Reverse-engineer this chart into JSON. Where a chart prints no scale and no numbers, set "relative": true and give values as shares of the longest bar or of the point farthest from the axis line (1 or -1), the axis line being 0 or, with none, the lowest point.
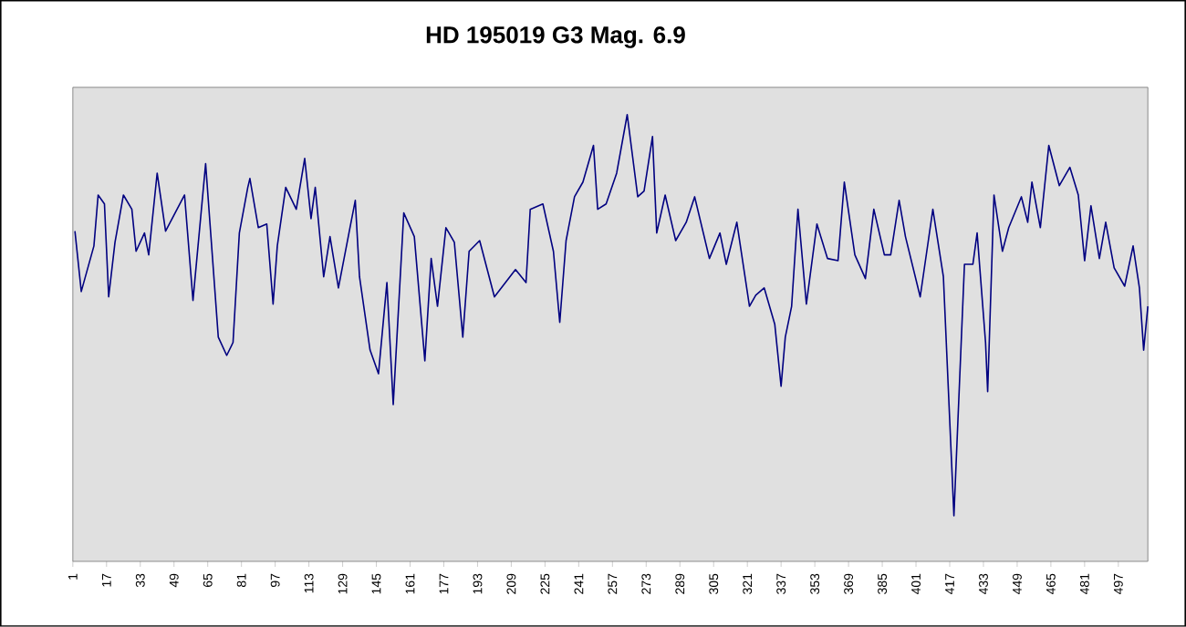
{
  "chart_data": {
    "type": "line",
    "title": "HD 195019 G3  Mag. 6.9",
    "relative": true,
    "tick_labels": "x",
    "grid": false,
    "marker": "none",
    "line_style": "solid",
    "xlim": [
      1,
      511
    ],
    "xticks": [
      1,
      17,
      33,
      49,
      65,
      81,
      97,
      113,
      129,
      145,
      161,
      177,
      193,
      209,
      225,
      241,
      257,
      273,
      289,
      305,
      321,
      337,
      353,
      369,
      385,
      401,
      417,
      433,
      449,
      465,
      481,
      497
    ],
    "series": [
      {
        "color": "#000080",
        "x": [
          2,
          5,
          11,
          13,
          16,
          18,
          21,
          25,
          29,
          31,
          35,
          37,
          41,
          45,
          54,
          58,
          64,
          70,
          74,
          77,
          80,
          84,
          85,
          89,
          93,
          96,
          98,
          102,
          107,
          111,
          114,
          116,
          120,
          123,
          127,
          132,
          135,
          137,
          142,
          146,
          150,
          153,
          158,
          163,
          168,
          171,
          174,
          178,
          182,
          186,
          189,
          194,
          201,
          211,
          216,
          218,
          224,
          229,
          232,
          235,
          239,
          243,
          248,
          250,
          254,
          259,
          264,
          269,
          272,
          276,
          278,
          282,
          287,
          292,
          296,
          303,
          308,
          311,
          316,
          322,
          325,
          329,
          334,
          337,
          339,
          342,
          345,
          349,
          354,
          359,
          364,
          367,
          372,
          377,
          381,
          386,
          389,
          393,
          396,
          403,
          409,
          414,
          419,
          424,
          428,
          430,
          434,
          435,
          438,
          442,
          445,
          451,
          454,
          456,
          460,
          464,
          469,
          474,
          478,
          481,
          484,
          488,
          491,
          495,
          500,
          504,
          507,
          509,
          511
        ],
        "values": [
          0.739,
          0.604,
          0.706,
          0.82,
          0.8,
          0.592,
          0.714,
          0.82,
          0.788,
          0.694,
          0.735,
          0.686,
          0.869,
          0.739,
          0.82,
          0.584,
          0.89,
          0.502,
          0.461,
          0.49,
          0.735,
          0.837,
          0.857,
          0.747,
          0.755,
          0.576,
          0.706,
          0.837,
          0.788,
          0.902,
          0.767,
          0.837,
          0.637,
          0.727,
          0.612,
          0.735,
          0.808,
          0.637,
          0.473,
          0.42,
          0.624,
          0.351,
          0.78,
          0.727,
          0.449,
          0.678,
          0.571,
          0.747,
          0.714,
          0.502,
          0.694,
          0.718,
          0.592,
          0.653,
          0.624,
          0.788,
          0.8,
          0.694,
          0.535,
          0.718,
          0.816,
          0.849,
          0.931,
          0.788,
          0.8,
          0.869,
          1.0,
          0.816,
          0.829,
          0.951,
          0.735,
          0.82,
          0.718,
          0.759,
          0.816,
          0.678,
          0.735,
          0.665,
          0.759,
          0.571,
          0.596,
          0.612,
          0.531,
          0.392,
          0.502,
          0.571,
          0.788,
          0.576,
          0.755,
          0.678,
          0.673,
          0.849,
          0.686,
          0.633,
          0.788,
          0.686,
          0.686,
          0.808,
          0.727,
          0.592,
          0.788,
          0.637,
          0.102,
          0.665,
          0.665,
          0.735,
          0.49,
          0.38,
          0.82,
          0.694,
          0.747,
          0.816,
          0.759,
          0.849,
          0.747,
          0.931,
          0.841,
          0.882,
          0.82,
          0.673,
          0.796,
          0.678,
          0.759,
          0.657,
          0.616,
          0.706,
          0.612,
          0.473,
          0.571
        ]
      }
    ]
  }
}
